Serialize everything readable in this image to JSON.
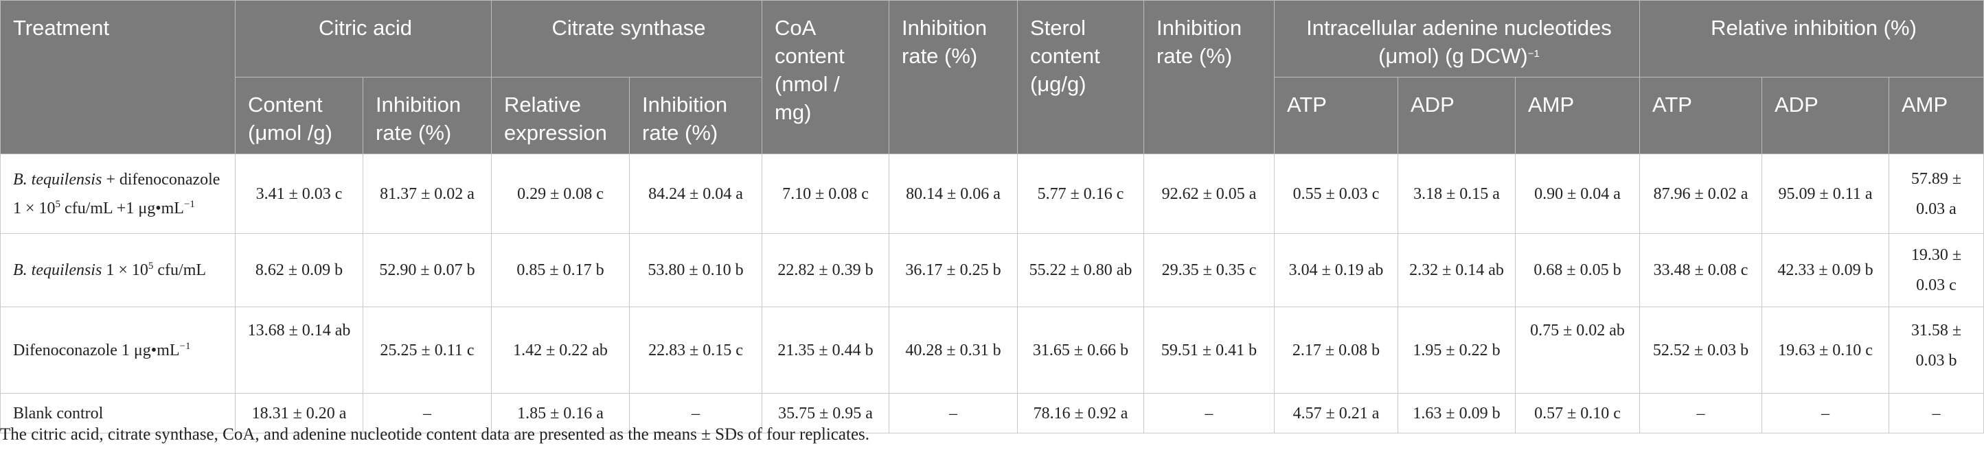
{
  "header": {
    "treatment": "Treatment",
    "citric_acid": "Citric acid",
    "citrate_synthase": "Citrate synthase",
    "coa_content": "CoA content (nmol / mg)",
    "inhibition_rate_1": "Inhibition rate (%)",
    "sterol_content": "Sterol content (μg/g)",
    "inhibition_rate_2": "Inhibition rate (%)",
    "intracellular": "Intracellular adenine nucleotides (μmol) (g DCW)",
    "intracellular_sup": "−1",
    "relative_inhibition": "Relative inhibition (%)",
    "content": "Content (μmol /g)",
    "inhibition_rate_ca": "Inhibition rate (%)",
    "relative_expression": "Relative expression",
    "inhibition_rate_cs": "Inhibition rate (%)",
    "atp": "ATP",
    "adp": "ADP",
    "amp": "AMP",
    "atp2": "ATP",
    "adp2": "ADP",
    "amp2": "AMP"
  },
  "rows": [
    {
      "label_species": "B. tequilensis",
      "label_rest": " + difenoconazole",
      "label_line2_a": "1 × 10",
      "label_line2_sup1": "5",
      "label_line2_b": " cfu/mL +1 μg•mL",
      "label_line2_sup2": "−1",
      "values": [
        "3.41 ± 0.03 c",
        "81.37 ± 0.02 a",
        "0.29 ± 0.08 c",
        "84.24 ± 0.04 a",
        "7.10 ± 0.08 c",
        "80.14 ± 0.06 a",
        "5.77 ± 0.16 c",
        "92.62 ± 0.05 a",
        "0.55 ± 0.03 c",
        "3.18 ± 0.15 a",
        "0.90 ± 0.04 a",
        "87.96 ± 0.02 a",
        "95.09 ± 0.11 a",
        "57.89 ± 0.03 a"
      ]
    },
    {
      "label_species": "B. tequilensis",
      "label_a": " 1 × 10",
      "label_sup": "5",
      "label_b": " cfu/mL",
      "values": [
        "8.62 ± 0.09 b",
        "52.90 ± 0.07 b",
        "0.85 ± 0.17 b",
        "53.80 ± 0.10 b",
        "22.82 ± 0.39 b",
        "36.17 ± 0.25 b",
        "55.22 ± 0.80 ab",
        "29.35 ± 0.35 c",
        "3.04 ± 0.19 ab",
        "2.32 ± 0.14 ab",
        "0.68 ± 0.05 b",
        "33.48 ± 0.08 c",
        "42.33 ± 0.09 b",
        "19.30 ± 0.03 c"
      ]
    },
    {
      "label_a": "Difenoconazole 1 μg•mL",
      "label_sup": "−1",
      "values": [
        "13.68 ± 0.14 ab",
        "25.25 ± 0.11 c",
        "1.42 ± 0.22 ab",
        "22.83 ± 0.15 c",
        "21.35 ± 0.44 b",
        "40.28 ± 0.31 b",
        "31.65 ± 0.66 b",
        "59.51 ± 0.41 b",
        "2.17 ± 0.08 b",
        "1.95 ± 0.22 b",
        "0.75 ± 0.02 ab",
        "52.52 ± 0.03 b",
        "19.63 ± 0.10 c",
        "31.58 ± 0.03 b"
      ]
    },
    {
      "label_a": "Blank control",
      "values": [
        "18.31 ± 0.20 a",
        "–",
        "1.85 ± 0.16 a",
        "–",
        "35.75 ± 0.95 a",
        "–",
        "78.16 ± 0.92 a",
        "–",
        "4.57 ± 0.21 a",
        "1.63 ± 0.09 b",
        "0.57 ± 0.10 c",
        "–",
        "–",
        "–"
      ]
    }
  ],
  "footnote": "The citric acid, citrate synthase, CoA, and adenine nucleotide content data are presented as the means ± SDs of four replicates."
}
